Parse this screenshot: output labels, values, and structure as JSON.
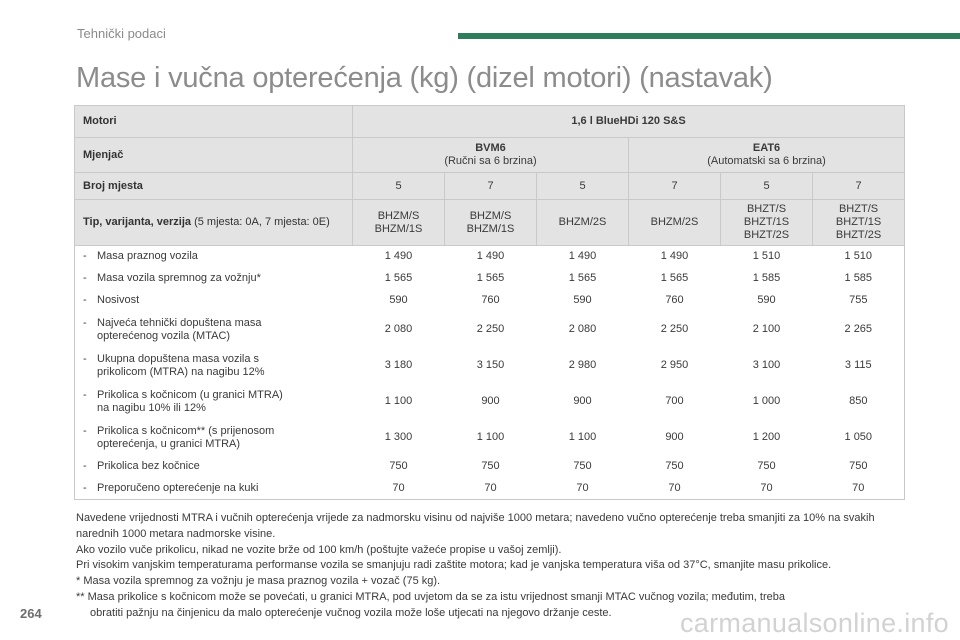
{
  "header": {
    "section": "Tehnički podaci",
    "accent": "#2e7d5b"
  },
  "title": "Mase i vučna opterećenja (kg) (dizel motori) (nastavak)",
  "table": {
    "motori_label": "Motori",
    "motori_value": "1,6 l BlueHDi 120 S&S",
    "mjenjac_label": "Mjenjač",
    "gearboxes": [
      {
        "name": "BVM6",
        "desc": "(Ručni sa 6 brzina)"
      },
      {
        "name": "EAT6",
        "desc": "(Automatski sa 6 brzina)"
      }
    ],
    "seats_label": "Broj mjesta",
    "seats": [
      "5",
      "7",
      "5",
      "7",
      "5",
      "7"
    ],
    "type_label": "Tip, varijanta, verzija",
    "type_note": " (5 mjesta: 0A, 7 mjesta: 0E)",
    "types": [
      [
        "BHZM/S",
        "BHZM/1S"
      ],
      [
        "BHZM/S",
        "BHZM/1S"
      ],
      [
        "BHZM/2S"
      ],
      [
        "BHZM/2S"
      ],
      [
        "BHZT/S",
        "BHZT/1S",
        "BHZT/2S"
      ],
      [
        "BHZT/S",
        "BHZT/1S",
        "BHZT/2S"
      ]
    ],
    "rows": [
      {
        "label": [
          "Masa praznog vozila"
        ],
        "values": [
          "1 490",
          "1 490",
          "1 490",
          "1 490",
          "1 510",
          "1 510"
        ]
      },
      {
        "label": [
          "Masa vozila spremnog za vožnju*"
        ],
        "values": [
          "1 565",
          "1 565",
          "1 565",
          "1 565",
          "1 585",
          "1 585"
        ]
      },
      {
        "label": [
          "Nosivost"
        ],
        "values": [
          "590",
          "760",
          "590",
          "760",
          "590",
          "755"
        ]
      },
      {
        "label": [
          "Najveća tehnički dopuštena masa",
          "opterećenog vozila (MTAC)"
        ],
        "values": [
          "2 080",
          "2 250",
          "2 080",
          "2 250",
          "2 100",
          "2 265"
        ]
      },
      {
        "label": [
          "Ukupna dopuštena masa vozila s",
          "prikolicom (MTRA) na nagibu 12%"
        ],
        "values": [
          "3 180",
          "3 150",
          "2 980",
          "2 950",
          "3 100",
          "3 115"
        ]
      },
      {
        "label": [
          "Prikolica s kočnicom (u granici MTRA)",
          "na nagibu 10% ili 12%"
        ],
        "values": [
          "1 100",
          "900",
          "900",
          "700",
          "1 000",
          "850"
        ]
      },
      {
        "label": [
          "Prikolica s kočnicom** (s prijenosom",
          "opterećenja, u granici MTRA)"
        ],
        "values": [
          "1 300",
          "1 100",
          "1 100",
          "900",
          "1 200",
          "1 050"
        ]
      },
      {
        "label": [
          "Prikolica bez kočnice"
        ],
        "values": [
          "750",
          "750",
          "750",
          "750",
          "750",
          "750"
        ]
      },
      {
        "label": [
          "Preporučeno opterećenje na kuki"
        ],
        "values": [
          "70",
          "70",
          "70",
          "70",
          "70",
          "70"
        ]
      }
    ]
  },
  "notes": [
    "Navedene vrijednosti MTRA i vučnih opterećenja vrijede za nadmorsku visinu od najviše 1000 metara; navedeno vučno opterećenje treba smanjiti za 10% na svakih narednih 1000 metara nadmorske visine.",
    "Ako vozilo vuče prikolicu, nikad ne vozite brže od 100 km/h (poštujte važeće propise u vašoj zemlji).",
    "Pri visokim vanjskim temperaturama performanse vozila se smanjuju radi zaštite motora; kad je vanjska temperatura viša od 37°C, smanjite masu prikolice.",
    "* Masa vozila spremnog za vožnju je masa praznog vozila + vozač (75 kg).",
    "** Masa prikolice s kočnicom može se povećati, u granici MTRA, pod uvjetom da se za istu vrijednost smanji MTAC vučnog vozila; međutim, treba",
    "obratiti pažnju na činjenicu da malo opterećenje vučnog vozila može loše utjecati na njegovo držanje ceste."
  ],
  "page_number": "264",
  "watermark": "carmanualsonline.info"
}
